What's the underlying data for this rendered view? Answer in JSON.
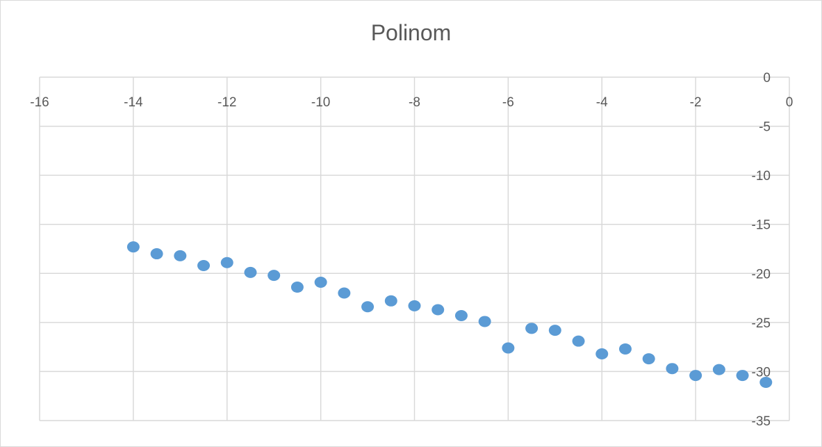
{
  "chart_data": {
    "type": "scatter",
    "title": "Polinom",
    "xlabel": "",
    "ylabel": "",
    "xlim": [
      -16,
      0
    ],
    "ylim": [
      -35,
      0
    ],
    "x_ticks": [
      -16,
      -14,
      -12,
      -10,
      -8,
      -6,
      -4,
      -2,
      0
    ],
    "y_ticks": [
      0,
      -5,
      -10,
      -15,
      -20,
      -25,
      -30,
      -35
    ],
    "grid": true,
    "legend": "none",
    "marker_color": "#5b9bd5",
    "series": [
      {
        "x": [
          -14,
          -13.5,
          -13,
          -12.5,
          -12,
          -11.5,
          -11,
          -10.5,
          -10,
          -9.5,
          -9,
          -8.5,
          -8,
          -7.5,
          -7,
          -6.5,
          -6,
          -5.5,
          -5,
          -4.5,
          -4,
          -3.5,
          -3,
          -2.5,
          -2,
          -1.5,
          -1,
          -0.5
        ],
        "y": [
          -17.3,
          -18.0,
          -18.2,
          -19.2,
          -18.9,
          -19.9,
          -20.2,
          -21.4,
          -20.9,
          -22.0,
          -23.4,
          -22.8,
          -23.3,
          -23.7,
          -24.3,
          -24.9,
          -27.6,
          -25.6,
          -25.8,
          -26.9,
          -28.2,
          -27.7,
          -28.7,
          -29.7,
          -30.4,
          -29.8,
          -30.4,
          -31.1
        ]
      }
    ]
  }
}
